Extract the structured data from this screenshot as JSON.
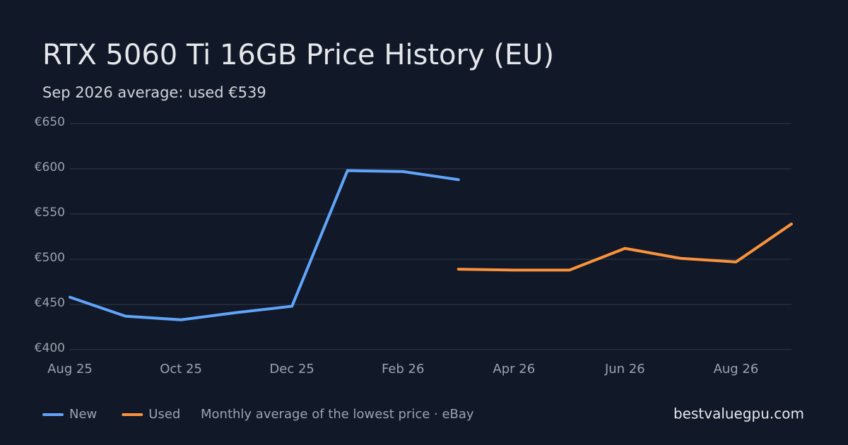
{
  "chart_data": {
    "type": "line",
    "title": "RTX 5060 Ti 16GB Price History (EU)",
    "subtitle": "Sep 2026 average: used €539",
    "categories": [
      "Aug 25",
      null,
      "Oct 25",
      null,
      "Dec 25",
      null,
      "Feb 26",
      null,
      "Apr 26",
      null,
      "Jun 26",
      null,
      "Aug 26",
      null
    ],
    "series": [
      {
        "name": "New",
        "color": "#60a5fa",
        "values": [
          458,
          437,
          433,
          441,
          448,
          598,
          597,
          588,
          null,
          null,
          null,
          null,
          null,
          null
        ]
      },
      {
        "name": "Used",
        "color": "#fb923c",
        "values": [
          null,
          null,
          null,
          null,
          null,
          null,
          null,
          489,
          488,
          488,
          512,
          501,
          497,
          539
        ]
      }
    ],
    "ylim": [
      400,
      650
    ],
    "yticks": [
      {
        "value": 400,
        "label": "€400"
      },
      {
        "value": 450,
        "label": "€450"
      },
      {
        "value": 500,
        "label": "€500"
      },
      {
        "value": 550,
        "label": "€550"
      },
      {
        "value": 600,
        "label": "€600"
      },
      {
        "value": 650,
        "label": "€650"
      }
    ],
    "grid": true,
    "note": "Monthly average of the lowest price · eBay",
    "source": "bestvaluegpu.com"
  }
}
